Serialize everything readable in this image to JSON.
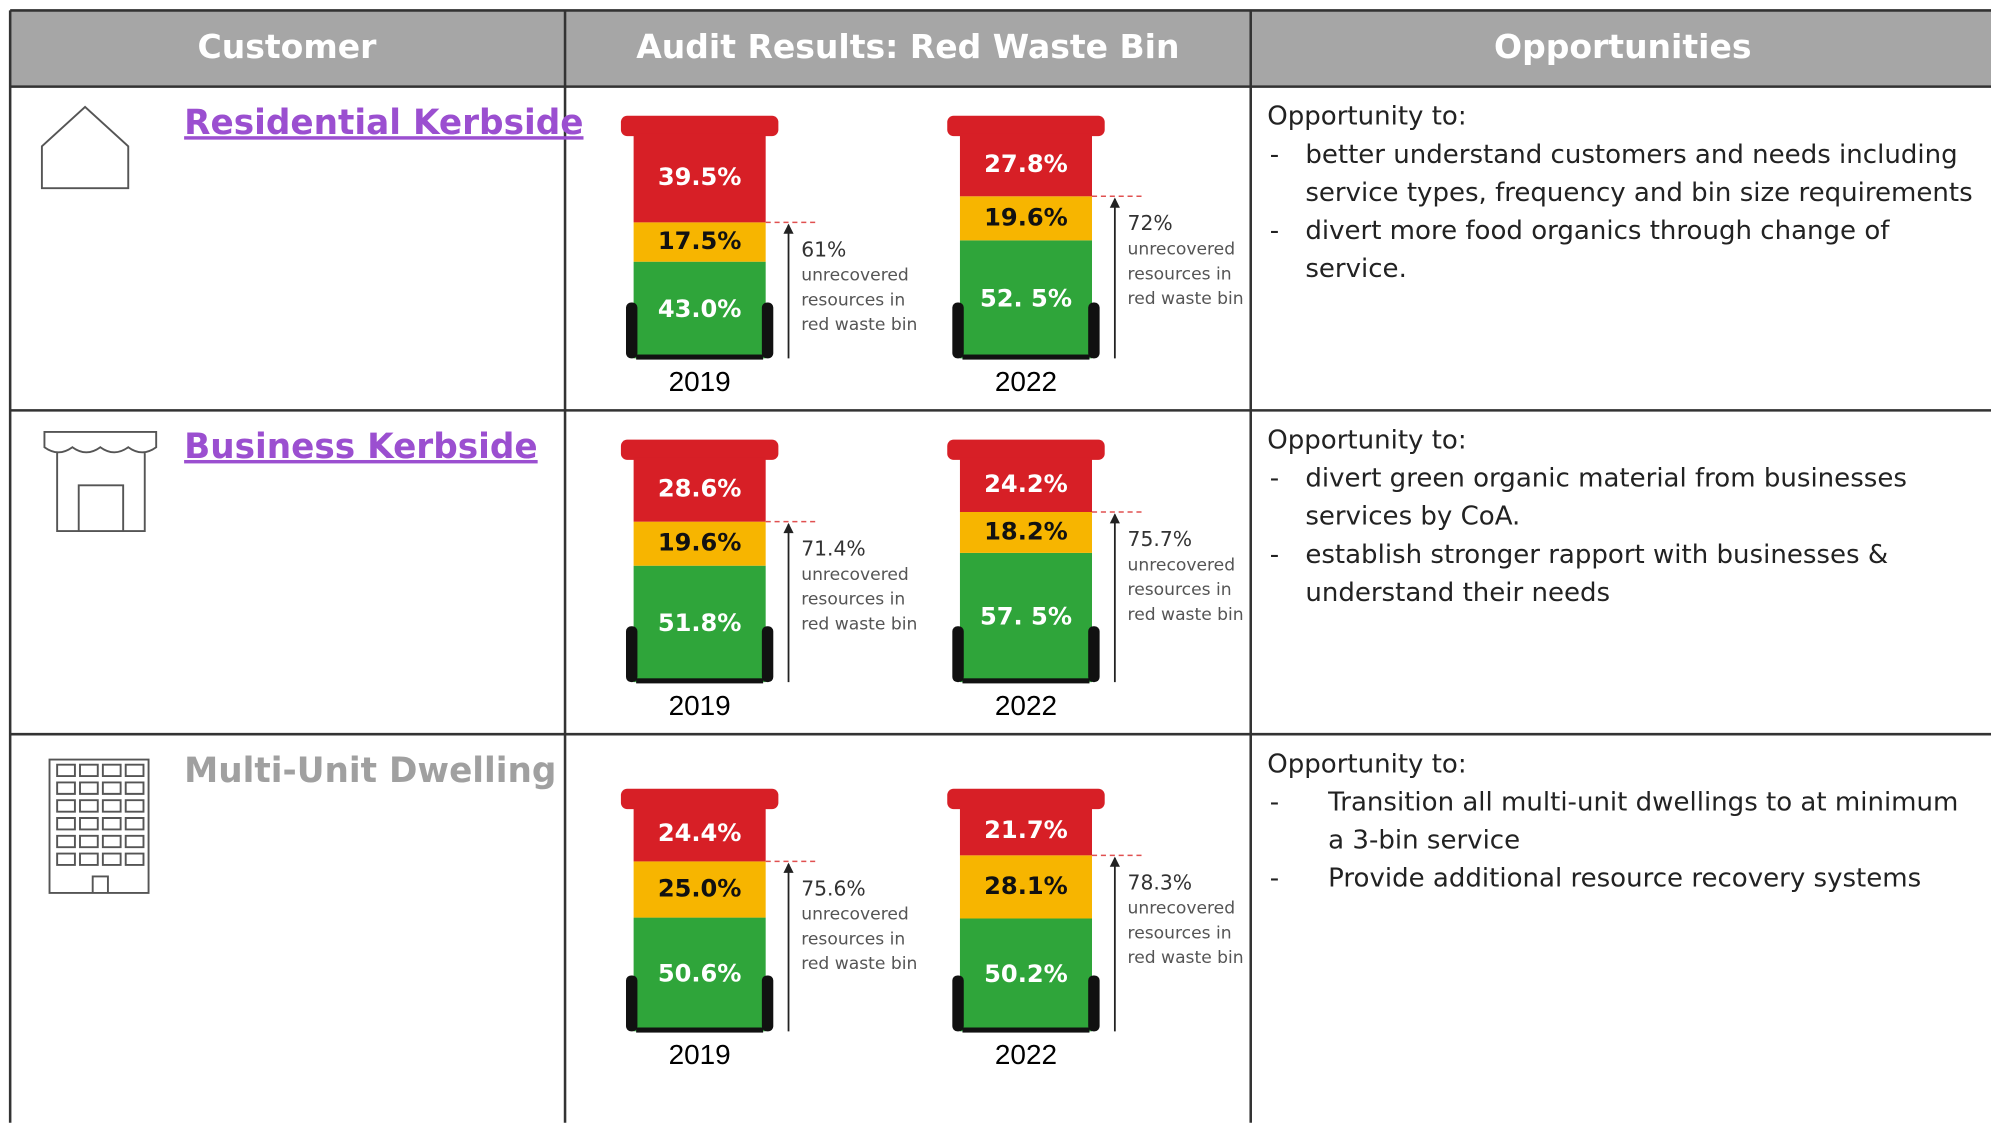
{
  "header": {
    "customer": "Customer",
    "audit": "Audit Results: Red Waste Bin",
    "opportunities": "Opportunities"
  },
  "rows": [
    {
      "customer": "Residential Kerbside",
      "bins": [
        {
          "year": "2019",
          "segments": [
            {
              "value": 39.5,
              "label": "39.5%"
            },
            {
              "value": 17.5,
              "label": "17.5%"
            },
            {
              "value": 43.0,
              "label": "43.0%"
            }
          ],
          "unrecovered": "61%",
          "note": [
            "unrecovered",
            "resources in",
            "red waste bin"
          ]
        },
        {
          "year": "2022",
          "segments": [
            {
              "value": 27.8,
              "label": "27.8%"
            },
            {
              "value": 19.6,
              "label": "19.6%"
            },
            {
              "value": 52.5,
              "label": "52. 5%"
            }
          ],
          "unrecovered": "72%",
          "note": [
            "unrecovered",
            "resources in",
            "red waste bin"
          ]
        }
      ],
      "opportunity_intro": "Opportunity to:",
      "opportunities": [
        "better understand customers and needs including service types, frequency and bin size requirements",
        "divert more food organics through change of service."
      ]
    },
    {
      "customer": "Business Kerbside",
      "bins": [
        {
          "year": "2019",
          "segments": [
            {
              "value": 28.6,
              "label": "28.6%"
            },
            {
              "value": 19.6,
              "label": "19.6%"
            },
            {
              "value": 51.8,
              "label": "51.8%"
            }
          ],
          "unrecovered": "71.4%",
          "note": [
            "unrecovered",
            "resources in",
            "red waste bin"
          ]
        },
        {
          "year": "2022",
          "segments": [
            {
              "value": 24.2,
              "label": "24.2%"
            },
            {
              "value": 18.2,
              "label": "18.2%"
            },
            {
              "value": 57.5,
              "label": "57. 5%"
            }
          ],
          "unrecovered": "75.7%",
          "note": [
            "unrecovered",
            "resources in",
            "red waste bin"
          ]
        }
      ],
      "opportunity_intro": "Opportunity to:",
      "opportunities": [
        "divert green organic material from businesses services by CoA.",
        "establish stronger rapport with businesses & understand their needs"
      ]
    },
    {
      "customer": "Multi-Unit Dwelling",
      "bins": [
        {
          "year": "2019",
          "segments": [
            {
              "value": 24.4,
              "label": "24.4%"
            },
            {
              "value": 25.0,
              "label": "25.0%"
            },
            {
              "value": 50.6,
              "label": "50.6%"
            }
          ],
          "unrecovered": "75.6%",
          "note": [
            "unrecovered",
            "resources in",
            "red waste bin"
          ]
        },
        {
          "year": "2022",
          "segments": [
            {
              "value": 21.7,
              "label": "21.7%"
            },
            {
              "value": 28.1,
              "label": "28.1%"
            },
            {
              "value": 50.2,
              "label": "50.2%"
            }
          ],
          "unrecovered": "78.3%",
          "note": [
            "unrecovered",
            "resources in",
            "red waste bin"
          ]
        }
      ],
      "opportunity_intro": "Opportunity to:",
      "opportunities": [
        "Transition all multi-unit dwellings to at minimum a 3-bin service",
        "Provide additional resource recovery systems"
      ]
    }
  ]
}
